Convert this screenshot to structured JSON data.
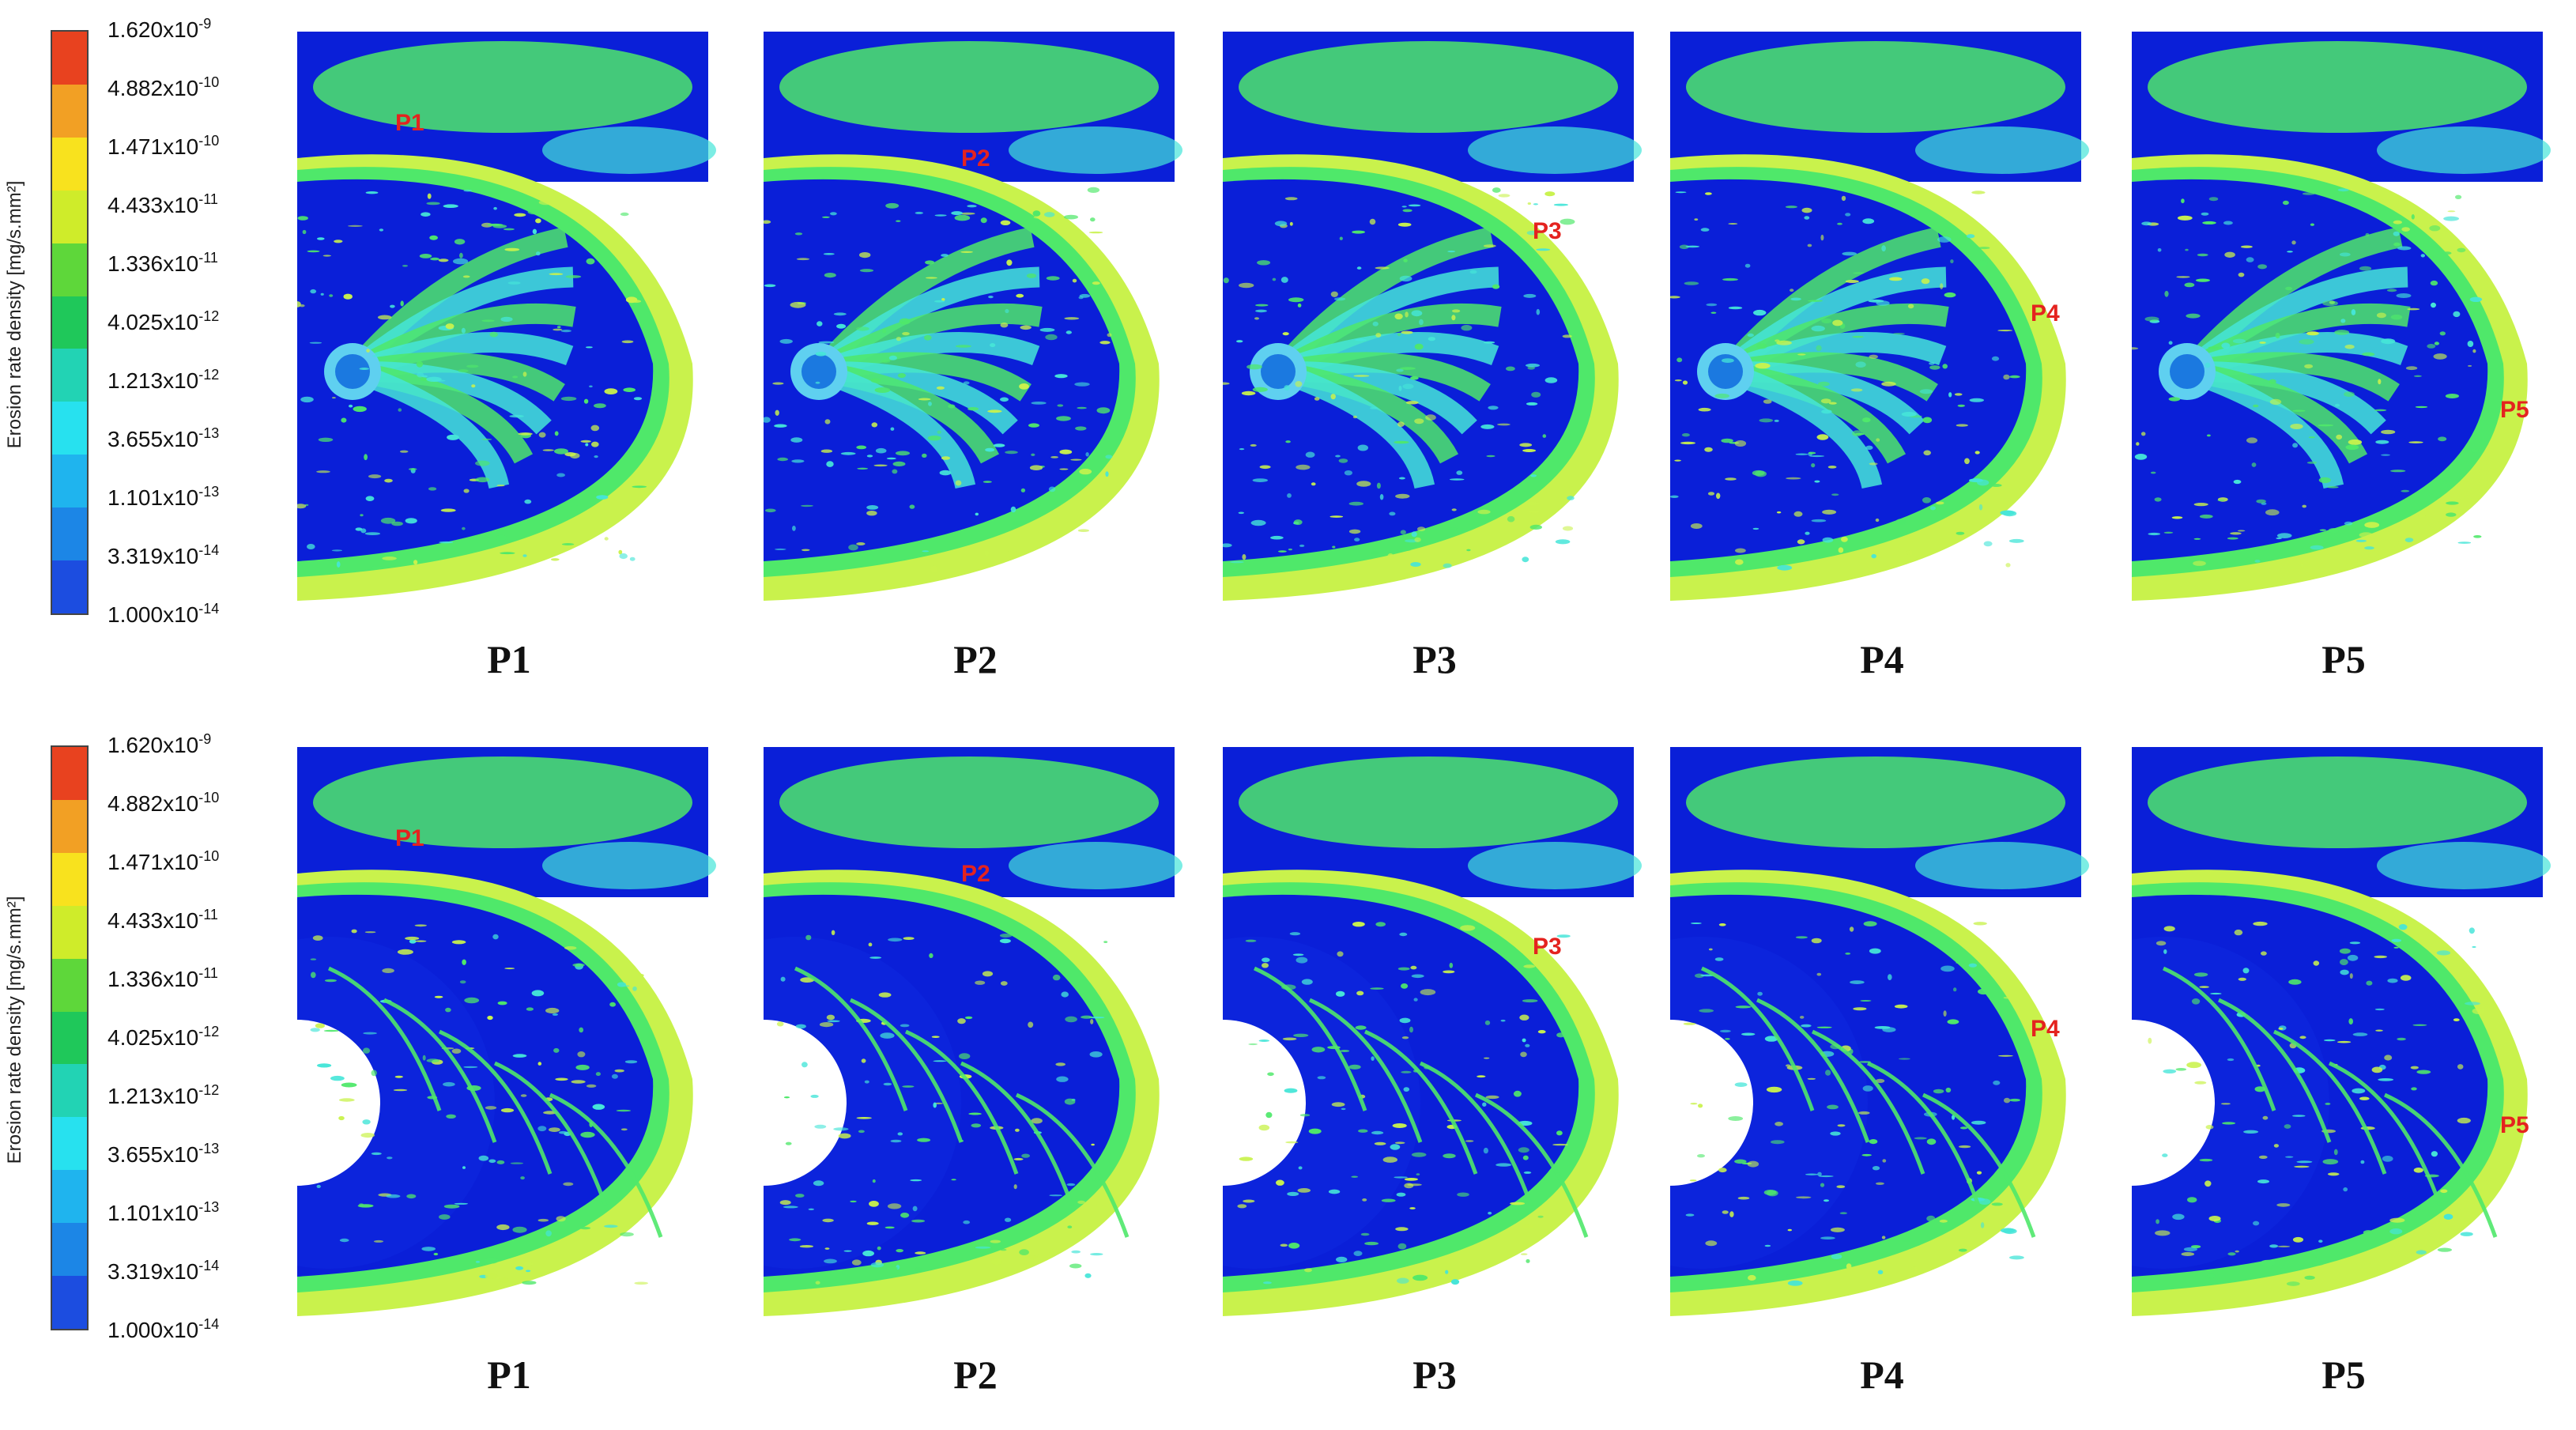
{
  "legend": {
    "title": "Erosion rate density [mg/s.mm²]",
    "labels": [
      {
        "mantissa": "1.620x10",
        "exp": "-9"
      },
      {
        "mantissa": "4.882x10",
        "exp": "-10"
      },
      {
        "mantissa": "1.471x10",
        "exp": "-10"
      },
      {
        "mantissa": "4.433x10",
        "exp": "-11"
      },
      {
        "mantissa": "1.336x10",
        "exp": "-11"
      },
      {
        "mantissa": "4.025x10",
        "exp": "-12"
      },
      {
        "mantissa": "1.213x10",
        "exp": "-12"
      },
      {
        "mantissa": "3.655x10",
        "exp": "-13"
      },
      {
        "mantissa": "1.101x10",
        "exp": "-13"
      },
      {
        "mantissa": "3.319x10",
        "exp": "-14"
      },
      {
        "mantissa": "1.000x10",
        "exp": "-14"
      }
    ],
    "colors": [
      "#e8421f",
      "#f2a024",
      "#f8e21e",
      "#cfec2a",
      "#5ed73a",
      "#1fc85a",
      "#22d3b4",
      "#27e1ef",
      "#1fb4ee",
      "#1c86e6",
      "#1c4de0"
    ]
  },
  "colors": {
    "background_fluid": "#0a1fd8",
    "casing_green": "#4fe86a",
    "blade_cyan": "#45e5d8",
    "accent_yellow": "#c9f24c",
    "marker_red": "#e4231f"
  },
  "rows": [
    {
      "view": "impeller-with-blades",
      "panels": [
        {
          "caption": "P1",
          "marker": "P1"
        },
        {
          "caption": "P2",
          "marker": "P2"
        },
        {
          "caption": "P3",
          "marker": "P3"
        },
        {
          "caption": "P4",
          "marker": "P4"
        },
        {
          "caption": "P5",
          "marker": "P5"
        }
      ]
    },
    {
      "view": "hub-back-face",
      "panels": [
        {
          "caption": "P1",
          "marker": "P1"
        },
        {
          "caption": "P2",
          "marker": "P2"
        },
        {
          "caption": "P3",
          "marker": "P3"
        },
        {
          "caption": "P4",
          "marker": "P4"
        },
        {
          "caption": "P5",
          "marker": "P5"
        }
      ]
    }
  ]
}
